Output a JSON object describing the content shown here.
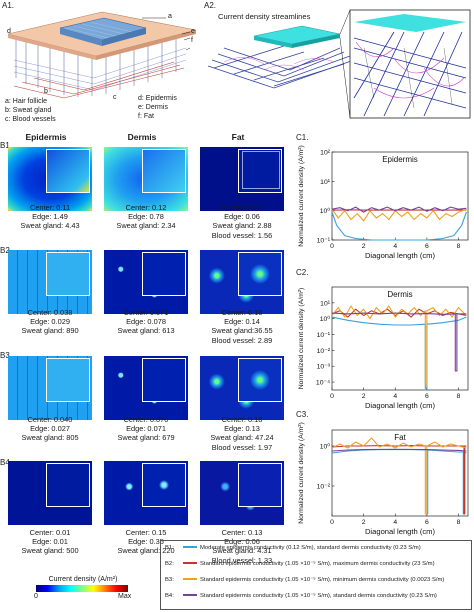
{
  "panels": {
    "a1": "A1.",
    "a2": "A2.",
    "b1": "B1.",
    "b2": "B2.",
    "b3": "B3.",
    "b4": "B4.",
    "c1": "C1.",
    "c2": "C2.",
    "c3": "C3."
  },
  "a1_labels": {
    "a": "a",
    "b": "b",
    "c": "c",
    "d": "d",
    "e": "e",
    "f": "f",
    "legend_left": [
      "a: Hair follicle",
      "b: Sweat gland",
      "c: Blood vessels"
    ],
    "legend_right": [
      "d: Epidermis",
      "e: Dermis",
      "f: Fat"
    ]
  },
  "a2_title": "Current density streamlines",
  "columns": [
    "Epidermis",
    "Dermis",
    "Fat"
  ],
  "rows": [
    {
      "epidermis": [
        "Center: 0.11",
        "Edge: 1.49",
        "Sweat gland: 4.43"
      ],
      "dermis": [
        "Center: 0.12",
        "Edge: 0.78",
        "Sweat gland: 2.34"
      ],
      "fat": [
        "Center: 0.09",
        "Edge: 0.06",
        "Sweat gland: 2.88",
        "Blood vessel: 1.56"
      ]
    },
    {
      "epidermis": [
        "Center: 0.038",
        "Edge: 0.029",
        "Sweat gland: 890"
      ],
      "dermis": [
        "Center: 0.071",
        "Edge: 0.078",
        "Sweat gland: 613"
      ],
      "fat": [
        "Center: 0.18",
        "Edge: 0.14",
        "Sweat gland:36.55",
        "Blood vessel: 2.89"
      ]
    },
    {
      "epidermis": [
        "Center: 0.040",
        "Edge: 0.027",
        "Sweat gland: 805"
      ],
      "dermis": [
        "Center: 0.070",
        "Edge: 0.071",
        "Sweat gland: 679"
      ],
      "fat": [
        "Center: 0.18",
        "Edge: 0.13",
        "Sweat gland: 47.24",
        "Blood vessel: 1.97"
      ]
    },
    {
      "epidermis": [
        "Center: 0.01",
        "Edge: 0.01",
        "Sweat gland: 500"
      ],
      "dermis": [
        "Center: 0.15",
        "Edge: 0.35",
        "Sweat gland: 220"
      ],
      "fat": [
        "Center: 0.13",
        "Edge: 0.06",
        "Sweat gland: 4.31",
        "Blood vessel: 1.33"
      ]
    }
  ],
  "colorbar": {
    "title": "Current density (A/m²)",
    "min": "0",
    "max": "Max"
  },
  "legend": [
    {
      "key": "B1:",
      "color": "#3aa0d8",
      "text": "Moderate epidermis conductivity (0.12 S/m), standard dermis conductivity (0.23 S/m)"
    },
    {
      "key": "B2:",
      "color": "#c0392b",
      "text": "Standard epidermis conductivity (1.05 ×10⁻⁵ S/m), maximum dermis conductivity (23 S/m)"
    },
    {
      "key": "B3:",
      "color": "#f0a020",
      "text": "Standard epidermis conductivity (1.05 ×10⁻⁵ S/m), minimum dermis conductivity (0.0023 S/m)"
    },
    {
      "key": "B4:",
      "color": "#7b3fa0",
      "text": "Standard epidermis conductivity (1.05 ×10⁻⁵ S/m), standard dermis conductivity (0.23 S/m)"
    }
  ],
  "chart_data": [
    {
      "type": "line",
      "title": "Epidermis",
      "xlabel": "Diagonal length (cm)",
      "ylabel": "Normalized current density (A/m²)",
      "xlim": [
        0,
        8.6
      ],
      "ylim_log10": [
        -1,
        2
      ],
      "x_ticks": [
        "0",
        "2",
        "4",
        "6",
        "8"
      ],
      "y_ticks": [
        "10²",
        "10¹",
        "10⁰",
        "10⁻¹"
      ],
      "series": [
        {
          "key": "B1",
          "color": "#3aa0d8",
          "x": [
            0,
            0.3,
            0.8,
            1.5,
            2.5,
            3.5,
            4.3,
            5,
            6,
            7,
            7.7,
            8.2,
            8.5
          ],
          "y_log10": [
            -0.05,
            -0.5,
            -0.85,
            -0.95,
            -1,
            -1,
            -1,
            -1,
            -1,
            -0.95,
            -0.85,
            -0.5,
            -0.05
          ]
        },
        {
          "key": "B2",
          "color": "#c0392b",
          "x": [
            0,
            0.5,
            1,
            2,
            3,
            4,
            5,
            6,
            7,
            8,
            8.5
          ],
          "y_log10": [
            0.02,
            0.02,
            0.03,
            0.02,
            0.02,
            0.02,
            0.02,
            0.02,
            0.02,
            0.02,
            0.02
          ]
        },
        {
          "key": "B3",
          "color": "#f0a020",
          "x": [
            0,
            0.4,
            0.8,
            1.2,
            1.6,
            2,
            2.4,
            2.8,
            3.2,
            3.6,
            4,
            4.4,
            4.8,
            5.2,
            5.6,
            6,
            6.4,
            6.8,
            7.2,
            7.6,
            8,
            8.5
          ],
          "y_log10": [
            0.05,
            -0.25,
            0.0,
            -0.3,
            -0.1,
            -0.35,
            0.0,
            -0.25,
            -0.1,
            -0.3,
            0.0,
            -0.2,
            -0.05,
            -0.3,
            -0.1,
            -0.25,
            0.0,
            -0.3,
            -0.1,
            -0.2,
            -0.05,
            0.05
          ]
        },
        {
          "key": "B4",
          "color": "#7b3fa0",
          "x": [
            0,
            0.5,
            1,
            1.5,
            2,
            2.5,
            3,
            3.5,
            4,
            4.5,
            5,
            5.5,
            6,
            6.5,
            7,
            7.5,
            8,
            8.5
          ],
          "y_log10": [
            0.05,
            0.1,
            0.0,
            0.12,
            -0.05,
            0.1,
            0.02,
            0.12,
            0.0,
            0.1,
            0.02,
            0.12,
            -0.02,
            0.1,
            0.0,
            0.12,
            0.05,
            0.08
          ]
        }
      ]
    },
    {
      "type": "line",
      "title": "Dermis",
      "xlabel": "Diagonal length (cm)",
      "ylabel": "Normalized current density (A/m²)",
      "xlim": [
        0,
        8.6
      ],
      "ylim_log10": [
        -4.5,
        2
      ],
      "x_ticks": [
        "0",
        "2",
        "4",
        "6",
        "8"
      ],
      "y_ticks": [
        "10¹",
        "10⁰",
        "10⁻¹",
        "10⁻²",
        "10⁻³",
        "10⁻⁴"
      ],
      "series": [
        {
          "key": "B1",
          "color": "#3aa0d8",
          "x": [
            0,
            1,
            2,
            3,
            4,
            5,
            5.9,
            5.9,
            6.0,
            6.0,
            7,
            8,
            8.5
          ],
          "y_log10": [
            0.1,
            -0.1,
            -0.25,
            -0.35,
            -0.4,
            -0.4,
            -0.35,
            -4.4,
            -4.4,
            -0.35,
            -0.25,
            -0.1,
            0.1
          ]
        },
        {
          "key": "B2",
          "color": "#c0392b",
          "x": [
            0,
            0.5,
            1,
            1.5,
            2,
            2.5,
            3,
            3.5,
            4,
            4.5,
            5,
            5.5,
            6,
            6.5,
            7,
            7.5,
            8,
            8.5
          ],
          "y_log10": [
            0.3,
            0.5,
            0.1,
            0.6,
            0.2,
            0.5,
            0.3,
            0.6,
            0.2,
            0.5,
            0.1,
            0.6,
            0.3,
            0.5,
            0.2,
            0.4,
            0.3,
            0.2
          ]
        },
        {
          "key": "B3",
          "color": "#f0a020",
          "x": [
            0,
            0.4,
            0.8,
            1.2,
            1.6,
            2,
            2.4,
            2.8,
            3.2,
            3.6,
            4,
            4.4,
            4.8,
            5.2,
            5.6,
            5.9,
            5.9,
            6.0,
            6.0,
            6.4,
            6.8,
            7.2,
            7.6,
            8,
            8.5
          ],
          "y_log10": [
            0.2,
            0.7,
            0.1,
            0.8,
            0.2,
            0.6,
            0.0,
            0.7,
            0.3,
            0.8,
            0.1,
            0.6,
            0.3,
            0.7,
            0.2,
            0.5,
            -4.2,
            -4.2,
            0.5,
            0.7,
            0.2,
            0.6,
            0.1,
            0.7,
            0.2
          ]
        },
        {
          "key": "B4",
          "color": "#7b3fa0",
          "x": [
            0,
            1,
            2,
            3,
            4,
            5,
            6,
            7,
            7.8,
            7.8,
            7.9,
            7.9,
            8.5
          ],
          "y_log10": [
            0.35,
            0.3,
            0.35,
            0.3,
            0.35,
            0.3,
            0.32,
            0.28,
            0.3,
            -3.3,
            -3.3,
            0.3,
            0.3
          ]
        }
      ]
    },
    {
      "type": "line",
      "title": "Fat",
      "xlabel": "Diagonal length (cm)",
      "ylabel": "Normalized current density (A/m²)",
      "xlim": [
        0,
        8.6
      ],
      "ylim_log10": [
        -3.5,
        0.8
      ],
      "x_ticks": [
        "0",
        "2",
        "4",
        "6",
        "8"
      ],
      "y_ticks": [
        "10⁰",
        "10⁻²"
      ],
      "series": [
        {
          "key": "B1",
          "color": "#3aa0d8",
          "x": [
            0,
            1,
            2,
            3,
            4,
            5,
            6,
            6,
            6.05,
            6.05,
            7,
            8,
            8.3,
            8.3,
            8.35,
            8.35,
            8.5
          ],
          "y_log10": [
            -0.35,
            -0.25,
            -0.2,
            -0.18,
            -0.17,
            -0.18,
            -0.2,
            -3.4,
            -3.4,
            -0.2,
            -0.25,
            -0.3,
            -0.3,
            -3.4,
            -3.4,
            -0.3,
            -0.35
          ]
        },
        {
          "key": "B2",
          "color": "#c0392b",
          "x": [
            0,
            1,
            2,
            3,
            4,
            5,
            6,
            7,
            8,
            8.35,
            8.35,
            8.4,
            8.4,
            8.5
          ],
          "y_log10": [
            -0.05,
            0.0,
            0.0,
            0.02,
            0.0,
            0.02,
            0.0,
            0.0,
            0.0,
            0.0,
            -3.4,
            -3.4,
            0.0,
            0.0
          ]
        },
        {
          "key": "B3",
          "color": "#f0a020",
          "x": [
            0,
            0.5,
            1,
            1.5,
            2,
            2.5,
            3,
            3.5,
            4,
            4.5,
            5,
            5.5,
            5.9,
            5.9,
            6.0,
            6.0,
            6.5,
            7,
            7.5,
            8,
            8.5
          ],
          "y_log10": [
            -0.1,
            0.1,
            -0.1,
            0.2,
            0.0,
            0.4,
            -0.05,
            0.1,
            -0.1,
            0.15,
            -0.05,
            0.1,
            0.0,
            -3.4,
            -3.4,
            0.0,
            0.2,
            -0.05,
            0.1,
            0.0,
            -0.1
          ]
        },
        {
          "key": "B4",
          "color": "#7b3fa0",
          "x": [
            0,
            1,
            2,
            3,
            4,
            5,
            6,
            7,
            8,
            8.5
          ],
          "y_log10": [
            -0.25,
            -0.2,
            -0.18,
            -0.17,
            -0.17,
            -0.17,
            -0.18,
            -0.2,
            -0.22,
            -0.25
          ]
        }
      ]
    }
  ]
}
